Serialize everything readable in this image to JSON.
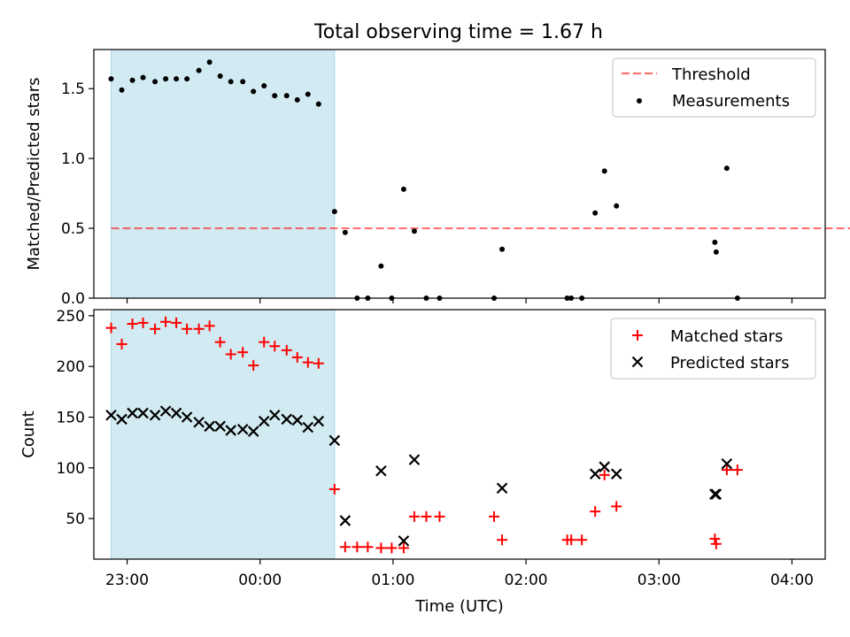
{
  "title": "Total observing time = 1.67 h",
  "colors": {
    "shade": "#add8e6",
    "threshold": "#ff0000",
    "measurements": "#000000",
    "matched": "#ff0000",
    "predicted": "#000000"
  },
  "chart_data": [
    {
      "type": "scatter",
      "title": "Total observing time = 1.67 h",
      "ylabel": "Matched/Predicted stars",
      "xlabel": "",
      "xlim": [
        -0.25,
        5.25
      ],
      "ylim": [
        0,
        1.78
      ],
      "xticks": [
        0,
        1,
        2,
        3,
        4,
        5
      ],
      "yticks": [
        0.0,
        0.5,
        1.0,
        1.5
      ],
      "ytick_labels": [
        "0.0",
        "0.5",
        "1.0",
        "1.5"
      ],
      "shaded_region": [
        -0.12,
        1.56
      ],
      "legend_position": "top-right",
      "threshold": {
        "name": "Threshold",
        "value": 0.5,
        "x_range": [
          -0.12,
          5.94
        ]
      },
      "series": [
        {
          "name": "Measurements",
          "marker": "dot",
          "points": [
            [
              -0.12,
              1.57
            ],
            [
              -0.04,
              1.49
            ],
            [
              0.04,
              1.56
            ],
            [
              0.12,
              1.58
            ],
            [
              0.21,
              1.55
            ],
            [
              0.29,
              1.57
            ],
            [
              0.37,
              1.57
            ],
            [
              0.45,
              1.57
            ],
            [
              0.54,
              1.63
            ],
            [
              0.62,
              1.69
            ],
            [
              0.7,
              1.59
            ],
            [
              0.78,
              1.55
            ],
            [
              0.87,
              1.55
            ],
            [
              0.95,
              1.48
            ],
            [
              1.03,
              1.52
            ],
            [
              1.11,
              1.45
            ],
            [
              1.2,
              1.45
            ],
            [
              1.28,
              1.42
            ],
            [
              1.36,
              1.46
            ],
            [
              1.44,
              1.39
            ],
            [
              1.56,
              0.62
            ],
            [
              1.64,
              0.47
            ],
            [
              1.73,
              0.0
            ],
            [
              1.81,
              0.0
            ],
            [
              1.91,
              0.23
            ],
            [
              1.99,
              0.0
            ],
            [
              2.08,
              0.78
            ],
            [
              2.16,
              0.48
            ],
            [
              2.25,
              0.0
            ],
            [
              2.35,
              0.0
            ],
            [
              2.76,
              0.0
            ],
            [
              2.82,
              0.35
            ],
            [
              3.31,
              0.0
            ],
            [
              3.34,
              0.0
            ],
            [
              3.42,
              0.0
            ],
            [
              3.52,
              0.61
            ],
            [
              3.59,
              0.91
            ],
            [
              3.68,
              0.66
            ],
            [
              4.42,
              0.4
            ],
            [
              4.43,
              0.33
            ],
            [
              4.51,
              0.93
            ],
            [
              4.59,
              0.0
            ]
          ]
        }
      ]
    },
    {
      "type": "scatter",
      "title": "",
      "ylabel": "Count",
      "xlabel": "Time (UTC)",
      "xlim": [
        -0.25,
        5.25
      ],
      "ylim": [
        10,
        256
      ],
      "xticks": [
        0,
        1,
        2,
        3,
        4,
        5
      ],
      "xtick_labels": [
        "23:00",
        "00:00",
        "01:00",
        "02:00",
        "03:00",
        "04:00"
      ],
      "yticks": [
        50,
        100,
        150,
        200,
        250
      ],
      "shaded_region": [
        -0.12,
        1.56
      ],
      "legend_position": "top-right",
      "series": [
        {
          "name": "Matched stars",
          "marker": "plus",
          "points": [
            [
              -0.12,
              238
            ],
            [
              -0.04,
              222
            ],
            [
              0.04,
              242
            ],
            [
              0.12,
              243
            ],
            [
              0.21,
              237
            ],
            [
              0.29,
              244
            ],
            [
              0.37,
              243
            ],
            [
              0.45,
              237
            ],
            [
              0.54,
              237
            ],
            [
              0.62,
              240
            ],
            [
              0.7,
              224
            ],
            [
              0.78,
              212
            ],
            [
              0.87,
              214
            ],
            [
              0.95,
              201
            ],
            [
              1.03,
              224
            ],
            [
              1.11,
              220
            ],
            [
              1.2,
              216
            ],
            [
              1.28,
              209
            ],
            [
              1.36,
              204
            ],
            [
              1.44,
              203
            ],
            [
              1.56,
              79
            ],
            [
              1.64,
              22
            ],
            [
              1.73,
              22
            ],
            [
              1.81,
              22
            ],
            [
              1.91,
              21
            ],
            [
              1.99,
              21
            ],
            [
              2.08,
              21
            ],
            [
              2.16,
              52
            ],
            [
              2.25,
              52
            ],
            [
              2.35,
              52
            ],
            [
              2.76,
              52
            ],
            [
              2.82,
              29
            ],
            [
              3.31,
              29
            ],
            [
              3.34,
              29
            ],
            [
              3.42,
              29
            ],
            [
              3.52,
              57
            ],
            [
              3.59,
              93
            ],
            [
              3.68,
              62
            ],
            [
              4.42,
              30
            ],
            [
              4.43,
              25
            ],
            [
              4.51,
              98
            ],
            [
              4.59,
              98
            ]
          ]
        },
        {
          "name": "Predicted stars",
          "marker": "x",
          "points": [
            [
              -0.12,
              152
            ],
            [
              -0.04,
              148
            ],
            [
              0.04,
              154
            ],
            [
              0.12,
              154
            ],
            [
              0.21,
              152
            ],
            [
              0.29,
              156
            ],
            [
              0.37,
              154
            ],
            [
              0.45,
              150
            ],
            [
              0.54,
              145
            ],
            [
              0.62,
              141
            ],
            [
              0.7,
              141
            ],
            [
              0.78,
              137
            ],
            [
              0.87,
              138
            ],
            [
              0.95,
              136
            ],
            [
              1.03,
              146
            ],
            [
              1.11,
              152
            ],
            [
              1.2,
              148
            ],
            [
              1.28,
              147
            ],
            [
              1.36,
              140
            ],
            [
              1.44,
              146
            ],
            [
              1.56,
              127
            ],
            [
              1.64,
              48
            ],
            [
              1.91,
              97
            ],
            [
              2.08,
              28
            ],
            [
              2.16,
              108
            ],
            [
              2.82,
              80
            ],
            [
              3.52,
              94
            ],
            [
              3.59,
              101
            ],
            [
              3.68,
              94
            ],
            [
              4.42,
              74
            ],
            [
              4.43,
              74
            ],
            [
              4.51,
              104
            ]
          ]
        }
      ]
    }
  ]
}
